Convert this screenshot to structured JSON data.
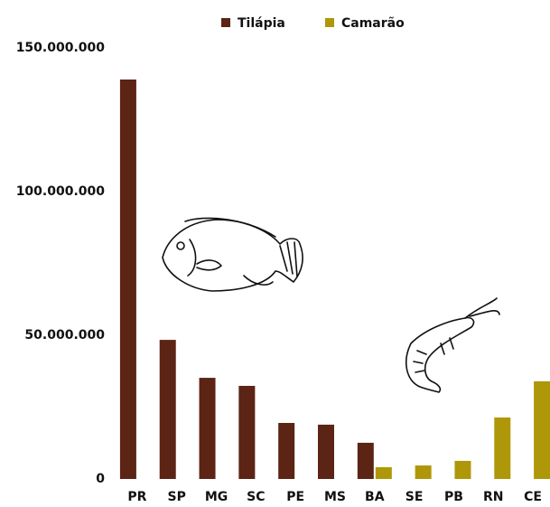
{
  "chart_data": {
    "type": "bar",
    "categories": [
      "PR",
      "SP",
      "MG",
      "SC",
      "PE",
      "MS",
      "BA",
      "SE",
      "PB",
      "RN",
      "CE"
    ],
    "series": [
      {
        "name": "Tilápia",
        "color": "#5b2414",
        "values": [
          139000000,
          48400000,
          35200000,
          32400000,
          19500000,
          18900000,
          12600000,
          null,
          null,
          null,
          null
        ]
      },
      {
        "name": "Camarão",
        "color": "#ae9708",
        "values": [
          null,
          null,
          null,
          null,
          null,
          null,
          4100000,
          4700000,
          6300000,
          21400000,
          34000000
        ]
      }
    ],
    "ylim": [
      0,
      150000000
    ],
    "yticks": [
      0,
      {
        "value": 50000000,
        "label": "50.000.000"
      },
      {
        "value": 100000000,
        "label": "100.000.000"
      },
      {
        "value": 150000000,
        "label": "150.000.000"
      }
    ],
    "grid": false,
    "legend": "top"
  }
}
